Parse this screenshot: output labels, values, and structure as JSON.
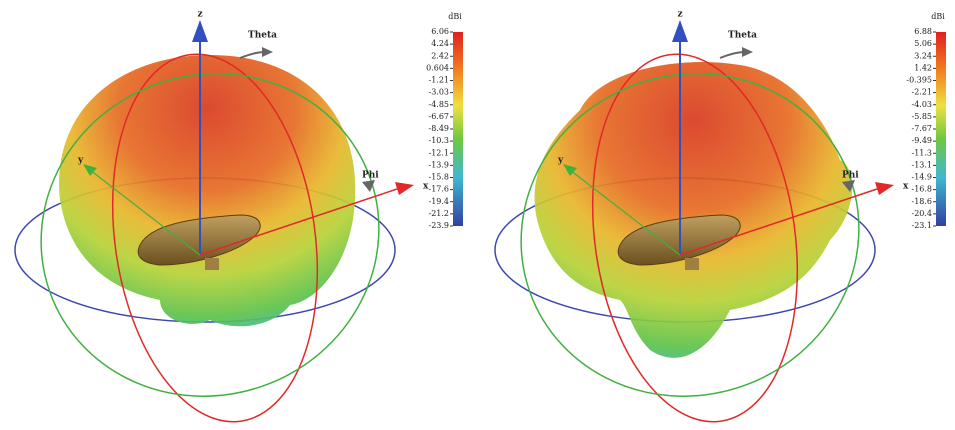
{
  "panels": [
    {
      "axes": {
        "z": "z",
        "y": "y",
        "x": "x",
        "theta": "Theta",
        "phi": "Phi"
      },
      "colorbar": {
        "unit": "dBi",
        "ticks": [
          "6.06",
          "4.24",
          "2.42",
          "0.604",
          "-1.21",
          "-3.03",
          "-4.85",
          "-6.67",
          "-8.49",
          "-10.3",
          "-12.1",
          "-13.9",
          "-15.8",
          "-17.6",
          "-19.4",
          "-21.2",
          "-23.9"
        ]
      }
    },
    {
      "axes": {
        "z": "z",
        "y": "y",
        "x": "x",
        "theta": "Theta",
        "phi": "Phi"
      },
      "colorbar": {
        "unit": "dBi",
        "ticks": [
          "6.88",
          "5.06",
          "3.24",
          "1.42",
          "-0.395",
          "-2.21",
          "-4.03",
          "-5.85",
          "-7.67",
          "-9.49",
          "-11.3",
          "-13.1",
          "-14.9",
          "-16.8",
          "-18.6",
          "-20.4",
          "-23.1"
        ]
      }
    }
  ]
}
